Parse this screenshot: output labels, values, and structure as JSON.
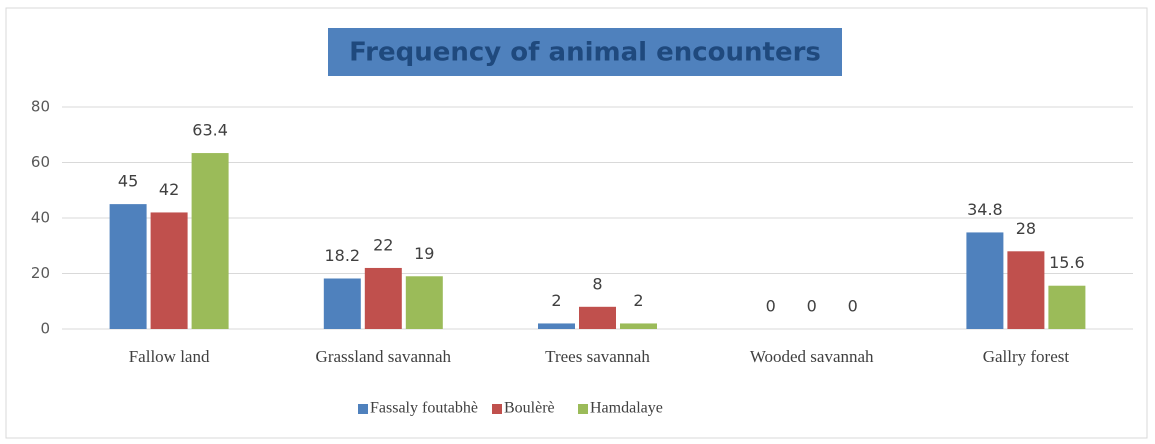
{
  "chart_data": {
    "type": "bar",
    "title": "Frequency of animal encounters",
    "categories": [
      "Fallow land",
      "Grassland savannah",
      "Trees savannah",
      "Wooded savannah",
      "Gallry forest"
    ],
    "series": [
      {
        "name": "Fassaly foutabhè",
        "color": "#4f81bd",
        "values": [
          45,
          18.2,
          2,
          0,
          34.8
        ]
      },
      {
        "name": "Boulèrè",
        "color": "#c0504d",
        "values": [
          42,
          22,
          8,
          0,
          28
        ]
      },
      {
        "name": "Hamdalaye",
        "color": "#9bbb59",
        "values": [
          63.4,
          19,
          2,
          0,
          15.6
        ]
      }
    ],
    "ylim": [
      0,
      80
    ],
    "yticks": [
      0,
      20,
      40,
      60,
      80
    ],
    "grid": true,
    "legend": "bottom"
  }
}
